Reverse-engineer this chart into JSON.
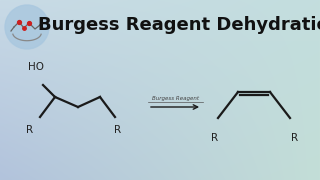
{
  "title": "Burgess Reagent Dehydration",
  "title_fontsize": 13,
  "title_color": "#111111",
  "title_fontweight": "bold",
  "reagent_label": "Burgess Reagent",
  "reactant_label_ho": "HO",
  "reactant_label_r1": "R",
  "reactant_label_r2": "R",
  "product_label_r1": "R",
  "product_label_r2": "R",
  "line_color": "#1a1a1a",
  "label_color": "#222222",
  "bg_topleft": [
    200,
    218,
    230
  ],
  "bg_topright": [
    195,
    222,
    222
  ],
  "bg_bottomleft": [
    178,
    195,
    220
  ],
  "bg_bottomright": [
    195,
    222,
    215
  ]
}
